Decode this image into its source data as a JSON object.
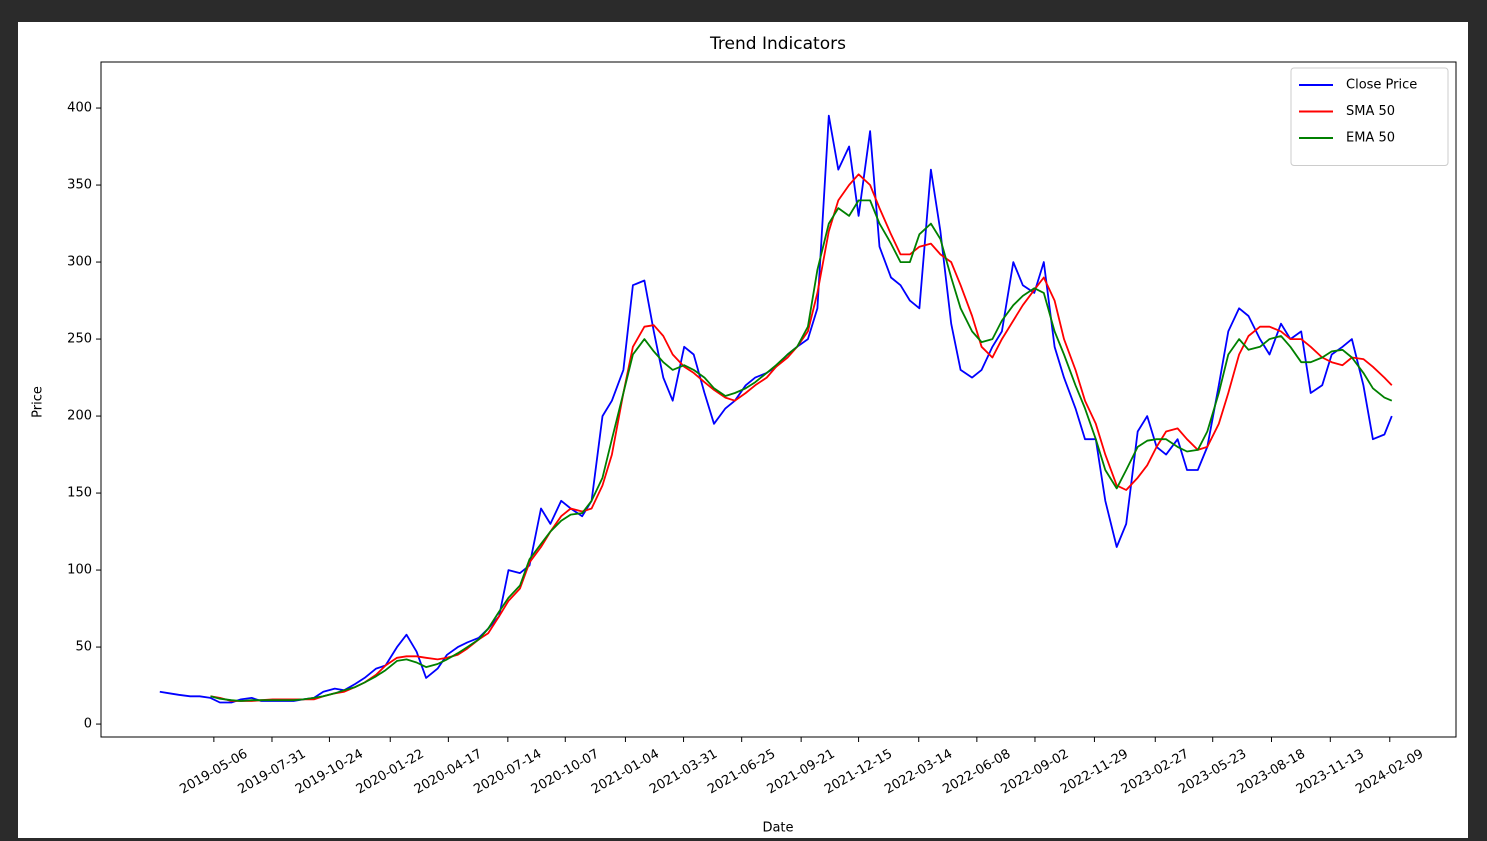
{
  "chart_data": {
    "type": "line",
    "title": "Trend Indicators",
    "x_label": "Date",
    "y_label": "Price",
    "legend": "upper right",
    "xlim": [
      "2018-11-20",
      "2024-05-17"
    ],
    "ylim": [
      -8.4,
      429.9
    ],
    "yticks": [
      0,
      50,
      100,
      150,
      200,
      250,
      300,
      350,
      400
    ],
    "xticks": [
      "2019-05-06",
      "2019-07-31",
      "2019-10-24",
      "2020-01-22",
      "2020-04-17",
      "2020-07-14",
      "2020-10-07",
      "2021-01-04",
      "2021-03-31",
      "2021-06-25",
      "2021-09-21",
      "2021-12-15",
      "2022-03-14",
      "2022-06-08",
      "2022-09-02",
      "2022-11-29",
      "2023-02-27",
      "2023-05-23",
      "2023-08-18",
      "2023-11-13",
      "2024-02-09"
    ],
    "x": [
      "2019-02-15",
      "2019-03-01",
      "2019-03-15",
      "2019-04-01",
      "2019-04-15",
      "2019-05-01",
      "2019-05-15",
      "2019-06-01",
      "2019-06-15",
      "2019-07-01",
      "2019-07-15",
      "2019-08-01",
      "2019-08-15",
      "2019-09-01",
      "2019-09-15",
      "2019-10-01",
      "2019-10-15",
      "2019-11-01",
      "2019-11-15",
      "2019-12-01",
      "2019-12-15",
      "2020-01-01",
      "2020-01-15",
      "2020-02-01",
      "2020-02-15",
      "2020-03-01",
      "2020-03-15",
      "2020-04-01",
      "2020-04-15",
      "2020-05-01",
      "2020-05-15",
      "2020-06-01",
      "2020-06-15",
      "2020-07-01",
      "2020-07-15",
      "2020-08-01",
      "2020-08-15",
      "2020-09-01",
      "2020-09-15",
      "2020-10-01",
      "2020-10-15",
      "2020-11-01",
      "2020-11-15",
      "2020-12-01",
      "2020-12-15",
      "2021-01-01",
      "2021-01-15",
      "2021-02-01",
      "2021-02-15",
      "2021-03-01",
      "2021-03-15",
      "2021-04-01",
      "2021-04-15",
      "2021-05-01",
      "2021-05-15",
      "2021-06-01",
      "2021-06-15",
      "2021-07-01",
      "2021-07-15",
      "2021-08-01",
      "2021-08-15",
      "2021-09-01",
      "2021-09-15",
      "2021-10-01",
      "2021-10-15",
      "2021-11-01",
      "2021-11-15",
      "2021-12-01",
      "2021-12-15",
      "2022-01-01",
      "2022-01-15",
      "2022-02-01",
      "2022-02-15",
      "2022-03-01",
      "2022-03-15",
      "2022-04-01",
      "2022-04-15",
      "2022-05-01",
      "2022-05-15",
      "2022-06-01",
      "2022-06-15",
      "2022-07-01",
      "2022-07-15",
      "2022-08-01",
      "2022-08-15",
      "2022-09-01",
      "2022-09-15",
      "2022-10-01",
      "2022-10-15",
      "2022-11-01",
      "2022-11-15",
      "2022-12-01",
      "2022-12-15",
      "2023-01-01",
      "2023-01-15",
      "2023-02-01",
      "2023-02-15",
      "2023-03-01",
      "2023-03-15",
      "2023-04-01",
      "2023-04-15",
      "2023-05-01",
      "2023-05-15",
      "2023-06-01",
      "2023-06-15",
      "2023-07-01",
      "2023-07-15",
      "2023-08-01",
      "2023-08-15",
      "2023-09-01",
      "2023-09-15",
      "2023-10-01",
      "2023-10-15",
      "2023-11-01",
      "2023-11-15",
      "2023-12-01",
      "2023-12-15",
      "2024-01-01",
      "2024-01-15",
      "2024-02-01",
      "2024-02-12"
    ],
    "series": [
      {
        "name": "Close Price",
        "color": "#0000ff",
        "values": [
          21,
          20,
          19,
          18,
          18,
          17,
          14,
          14,
          16,
          17,
          15,
          15,
          15,
          15,
          16,
          17,
          21,
          23,
          22,
          26,
          30,
          36,
          38,
          50,
          58,
          47,
          30,
          36,
          45,
          50,
          53,
          56,
          62,
          70,
          100,
          98,
          103,
          140,
          130,
          145,
          140,
          135,
          145,
          200,
          210,
          230,
          285,
          288,
          255,
          225,
          210,
          245,
          240,
          215,
          195,
          205,
          210,
          220,
          225,
          228,
          232,
          240,
          245,
          250,
          270,
          395,
          360,
          375,
          330,
          385,
          310,
          290,
          285,
          275,
          270,
          360,
          320,
          260,
          230,
          225,
          230,
          245,
          255,
          300,
          285,
          280,
          300,
          245,
          225,
          205,
          185,
          185,
          145,
          115,
          130,
          190,
          200,
          180,
          175,
          185,
          165,
          165,
          180,
          220,
          255,
          270,
          265,
          250,
          240,
          260,
          250,
          255,
          215,
          220,
          240,
          245,
          250,
          220,
          185,
          188,
          200
        ]
      },
      {
        "name": "SMA 50",
        "color": "#ff0000",
        "values": [
          null,
          null,
          null,
          null,
          null,
          18,
          17,
          15,
          15,
          15,
          15.5,
          16,
          16,
          16,
          16,
          16,
          18,
          20,
          21,
          24,
          27,
          32,
          38,
          43,
          44,
          44,
          43,
          42,
          43,
          45,
          49,
          55,
          59,
          70,
          80,
          88,
          105,
          115,
          125,
          135,
          140,
          138,
          140,
          155,
          175,
          215,
          245,
          258,
          259,
          252,
          240,
          232,
          228,
          222,
          217,
          212,
          210,
          215,
          220,
          225,
          232,
          238,
          245,
          255,
          280,
          320,
          340,
          350,
          357,
          350,
          335,
          318,
          305,
          305,
          310,
          312,
          305,
          300,
          285,
          265,
          245,
          238,
          250,
          262,
          272,
          282,
          290,
          275,
          250,
          230,
          210,
          195,
          175,
          155,
          152,
          160,
          168,
          180,
          190,
          192,
          185,
          178,
          180,
          195,
          215,
          240,
          252,
          258,
          258,
          255,
          250,
          250,
          245,
          238,
          235,
          233,
          238,
          237,
          232,
          225,
          220
        ]
      },
      {
        "name": "EMA 50",
        "color": "#008000",
        "values": [
          null,
          null,
          null,
          null,
          null,
          18,
          16.5,
          15.5,
          15,
          15.5,
          15.5,
          15.5,
          15.5,
          15.5,
          16,
          17,
          18,
          20,
          22,
          24,
          27,
          31,
          35,
          41,
          42,
          40,
          37,
          39,
          42,
          46,
          50,
          55,
          62,
          73,
          82,
          90,
          107,
          117,
          125,
          132,
          136,
          137,
          145,
          160,
          185,
          215,
          240,
          250,
          242,
          235,
          230,
          233,
          230,
          225,
          218,
          213,
          215,
          218,
          222,
          228,
          233,
          240,
          245,
          258,
          295,
          325,
          335,
          330,
          340,
          340,
          325,
          312,
          300,
          300,
          318,
          325,
          315,
          290,
          270,
          255,
          248,
          250,
          262,
          272,
          278,
          283,
          280,
          255,
          240,
          220,
          205,
          185,
          165,
          153,
          165,
          180,
          184,
          185,
          185,
          180,
          177,
          178,
          190,
          215,
          240,
          250,
          243,
          245,
          250,
          252,
          245,
          235,
          235,
          238,
          242,
          243,
          238,
          228,
          218,
          212,
          210
        ]
      }
    ]
  }
}
